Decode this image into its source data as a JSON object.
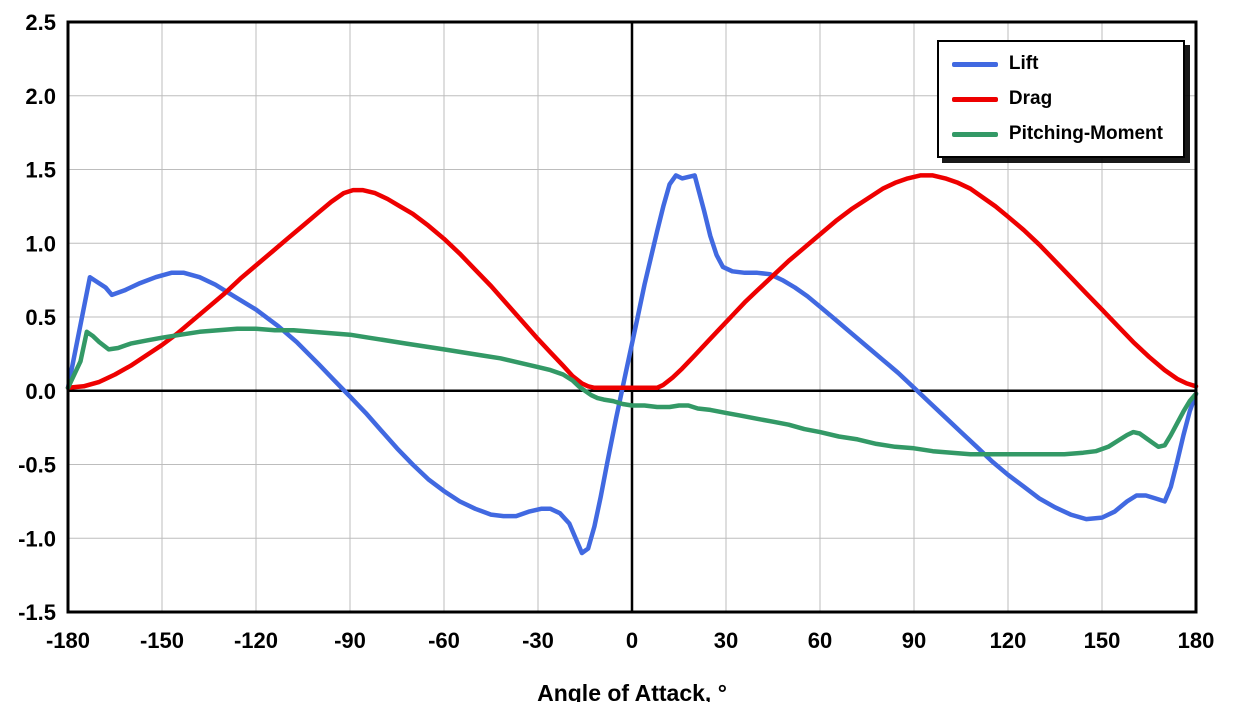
{
  "chart_data": {
    "type": "line",
    "title": "",
    "xlabel": "Angle of Attack, °",
    "ylabel": "",
    "xlim": [
      -180,
      180
    ],
    "ylim": [
      -1.5,
      2.5
    ],
    "xticks": [
      -180,
      -150,
      -120,
      -90,
      -60,
      -30,
      0,
      30,
      60,
      90,
      120,
      150,
      180
    ],
    "yticks": [
      2.5,
      2.0,
      1.5,
      1.0,
      0.5,
      0.0,
      -0.5,
      -1.0,
      -1.5
    ],
    "grid": true,
    "gridline_color": "#bdbdbd",
    "zero_line_color": "#000000",
    "legend_position": "top-right",
    "series": [
      {
        "name": "Lift",
        "color": "#4169E1",
        "points": [
          [
            -180,
            0.02
          ],
          [
            -173,
            0.77
          ],
          [
            -168,
            0.7
          ],
          [
            -166,
            0.65
          ],
          [
            -162,
            0.68
          ],
          [
            -157,
            0.73
          ],
          [
            -152,
            0.77
          ],
          [
            -147,
            0.8
          ],
          [
            -143,
            0.8
          ],
          [
            -138,
            0.77
          ],
          [
            -133,
            0.72
          ],
          [
            -127,
            0.64
          ],
          [
            -120,
            0.55
          ],
          [
            -113,
            0.44
          ],
          [
            -107,
            0.33
          ],
          [
            -100,
            0.18
          ],
          [
            -95,
            0.07
          ],
          [
            -90,
            -0.04
          ],
          [
            -85,
            -0.15
          ],
          [
            -80,
            -0.27
          ],
          [
            -75,
            -0.39
          ],
          [
            -70,
            -0.5
          ],
          [
            -65,
            -0.6
          ],
          [
            -60,
            -0.68
          ],
          [
            -55,
            -0.75
          ],
          [
            -50,
            -0.8
          ],
          [
            -45,
            -0.84
          ],
          [
            -41,
            -0.85
          ],
          [
            -37,
            -0.85
          ],
          [
            -33,
            -0.82
          ],
          [
            -29,
            -0.8
          ],
          [
            -26,
            -0.8
          ],
          [
            -23,
            -0.83
          ],
          [
            -20,
            -0.9
          ],
          [
            -18,
            -1.0
          ],
          [
            -16,
            -1.1
          ],
          [
            -14,
            -1.07
          ],
          [
            -12,
            -0.92
          ],
          [
            -10,
            -0.72
          ],
          [
            -8,
            -0.5
          ],
          [
            -5,
            -0.18
          ],
          [
            -2,
            0.12
          ],
          [
            0,
            0.32
          ],
          [
            2,
            0.52
          ],
          [
            4,
            0.72
          ],
          [
            6,
            0.9
          ],
          [
            8,
            1.08
          ],
          [
            10,
            1.25
          ],
          [
            12,
            1.4
          ],
          [
            14,
            1.46
          ],
          [
            16,
            1.44
          ],
          [
            18,
            1.45
          ],
          [
            20,
            1.46
          ],
          [
            21,
            1.38
          ],
          [
            23,
            1.22
          ],
          [
            25,
            1.05
          ],
          [
            27,
            0.92
          ],
          [
            29,
            0.84
          ],
          [
            32,
            0.81
          ],
          [
            36,
            0.8
          ],
          [
            40,
            0.8
          ],
          [
            44,
            0.79
          ],
          [
            48,
            0.75
          ],
          [
            52,
            0.7
          ],
          [
            56,
            0.64
          ],
          [
            60,
            0.57
          ],
          [
            65,
            0.48
          ],
          [
            70,
            0.39
          ],
          [
            75,
            0.3
          ],
          [
            80,
            0.21
          ],
          [
            85,
            0.12
          ],
          [
            90,
            0.02
          ],
          [
            95,
            -0.08
          ],
          [
            100,
            -0.18
          ],
          [
            105,
            -0.28
          ],
          [
            110,
            -0.38
          ],
          [
            115,
            -0.48
          ],
          [
            120,
            -0.57
          ],
          [
            125,
            -0.65
          ],
          [
            130,
            -0.73
          ],
          [
            135,
            -0.79
          ],
          [
            140,
            -0.84
          ],
          [
            145,
            -0.87
          ],
          [
            150,
            -0.86
          ],
          [
            154,
            -0.82
          ],
          [
            158,
            -0.75
          ],
          [
            161,
            -0.71
          ],
          [
            164,
            -0.71
          ],
          [
            167,
            -0.73
          ],
          [
            170,
            -0.75
          ],
          [
            172,
            -0.65
          ],
          [
            174,
            -0.48
          ],
          [
            176,
            -0.3
          ],
          [
            178,
            -0.14
          ],
          [
            180,
            -0.02
          ]
        ]
      },
      {
        "name": "Drag",
        "color": "#EE0000",
        "points": [
          [
            -180,
            0.02
          ],
          [
            -175,
            0.03
          ],
          [
            -170,
            0.06
          ],
          [
            -165,
            0.11
          ],
          [
            -160,
            0.17
          ],
          [
            -155,
            0.24
          ],
          [
            -150,
            0.31
          ],
          [
            -145,
            0.39
          ],
          [
            -140,
            0.48
          ],
          [
            -135,
            0.57
          ],
          [
            -130,
            0.66
          ],
          [
            -125,
            0.76
          ],
          [
            -120,
            0.85
          ],
          [
            -115,
            0.94
          ],
          [
            -110,
            1.03
          ],
          [
            -105,
            1.12
          ],
          [
            -100,
            1.21
          ],
          [
            -96,
            1.28
          ],
          [
            -92,
            1.34
          ],
          [
            -89,
            1.36
          ],
          [
            -86,
            1.36
          ],
          [
            -82,
            1.34
          ],
          [
            -78,
            1.3
          ],
          [
            -74,
            1.25
          ],
          [
            -70,
            1.2
          ],
          [
            -65,
            1.12
          ],
          [
            -60,
            1.03
          ],
          [
            -55,
            0.93
          ],
          [
            -50,
            0.82
          ],
          [
            -45,
            0.71
          ],
          [
            -40,
            0.59
          ],
          [
            -35,
            0.47
          ],
          [
            -30,
            0.35
          ],
          [
            -26,
            0.26
          ],
          [
            -22,
            0.17
          ],
          [
            -19,
            0.1
          ],
          [
            -16,
            0.05
          ],
          [
            -14,
            0.03
          ],
          [
            -12,
            0.02
          ],
          [
            -8,
            0.02
          ],
          [
            -4,
            0.02
          ],
          [
            0,
            0.02
          ],
          [
            4,
            0.02
          ],
          [
            8,
            0.02
          ],
          [
            10,
            0.04
          ],
          [
            13,
            0.09
          ],
          [
            16,
            0.15
          ],
          [
            20,
            0.24
          ],
          [
            24,
            0.33
          ],
          [
            28,
            0.42
          ],
          [
            32,
            0.51
          ],
          [
            36,
            0.6
          ],
          [
            40,
            0.68
          ],
          [
            45,
            0.78
          ],
          [
            50,
            0.88
          ],
          [
            55,
            0.97
          ],
          [
            60,
            1.06
          ],
          [
            65,
            1.15
          ],
          [
            70,
            1.23
          ],
          [
            75,
            1.3
          ],
          [
            80,
            1.37
          ],
          [
            84,
            1.41
          ],
          [
            88,
            1.44
          ],
          [
            92,
            1.46
          ],
          [
            96,
            1.46
          ],
          [
            100,
            1.44
          ],
          [
            104,
            1.41
          ],
          [
            108,
            1.37
          ],
          [
            112,
            1.31
          ],
          [
            116,
            1.25
          ],
          [
            120,
            1.18
          ],
          [
            125,
            1.09
          ],
          [
            130,
            0.99
          ],
          [
            135,
            0.88
          ],
          [
            140,
            0.77
          ],
          [
            145,
            0.66
          ],
          [
            150,
            0.55
          ],
          [
            155,
            0.44
          ],
          [
            160,
            0.33
          ],
          [
            165,
            0.23
          ],
          [
            170,
            0.14
          ],
          [
            174,
            0.08
          ],
          [
            177,
            0.05
          ],
          [
            180,
            0.03
          ]
        ]
      },
      {
        "name": "Pitching-Moment",
        "color": "#339966",
        "points": [
          [
            -180,
            0.02
          ],
          [
            -176,
            0.2
          ],
          [
            -174,
            0.4
          ],
          [
            -172,
            0.37
          ],
          [
            -170,
            0.33
          ],
          [
            -167,
            0.28
          ],
          [
            -164,
            0.29
          ],
          [
            -160,
            0.32
          ],
          [
            -155,
            0.34
          ],
          [
            -150,
            0.36
          ],
          [
            -144,
            0.38
          ],
          [
            -138,
            0.4
          ],
          [
            -132,
            0.41
          ],
          [
            -126,
            0.42
          ],
          [
            -120,
            0.42
          ],
          [
            -114,
            0.41
          ],
          [
            -108,
            0.41
          ],
          [
            -102,
            0.4
          ],
          [
            -96,
            0.39
          ],
          [
            -90,
            0.38
          ],
          [
            -84,
            0.36
          ],
          [
            -78,
            0.34
          ],
          [
            -72,
            0.32
          ],
          [
            -66,
            0.3
          ],
          [
            -60,
            0.28
          ],
          [
            -54,
            0.26
          ],
          [
            -48,
            0.24
          ],
          [
            -42,
            0.22
          ],
          [
            -36,
            0.19
          ],
          [
            -30,
            0.16
          ],
          [
            -26,
            0.14
          ],
          [
            -22,
            0.11
          ],
          [
            -19,
            0.07
          ],
          [
            -17,
            0.03
          ],
          [
            -15,
            0.0
          ],
          [
            -13,
            -0.03
          ],
          [
            -11,
            -0.05
          ],
          [
            -9,
            -0.06
          ],
          [
            -6,
            -0.07
          ],
          [
            -3,
            -0.09
          ],
          [
            0,
            -0.1
          ],
          [
            4,
            -0.1
          ],
          [
            8,
            -0.11
          ],
          [
            12,
            -0.11
          ],
          [
            15,
            -0.1
          ],
          [
            18,
            -0.1
          ],
          [
            21,
            -0.12
          ],
          [
            25,
            -0.13
          ],
          [
            30,
            -0.15
          ],
          [
            35,
            -0.17
          ],
          [
            40,
            -0.19
          ],
          [
            45,
            -0.21
          ],
          [
            50,
            -0.23
          ],
          [
            55,
            -0.26
          ],
          [
            60,
            -0.28
          ],
          [
            66,
            -0.31
          ],
          [
            72,
            -0.33
          ],
          [
            78,
            -0.36
          ],
          [
            84,
            -0.38
          ],
          [
            90,
            -0.39
          ],
          [
            96,
            -0.41
          ],
          [
            102,
            -0.42
          ],
          [
            108,
            -0.43
          ],
          [
            114,
            -0.43
          ],
          [
            120,
            -0.43
          ],
          [
            126,
            -0.43
          ],
          [
            132,
            -0.43
          ],
          [
            138,
            -0.43
          ],
          [
            144,
            -0.42
          ],
          [
            148,
            -0.41
          ],
          [
            152,
            -0.38
          ],
          [
            155,
            -0.34
          ],
          [
            158,
            -0.3
          ],
          [
            160,
            -0.28
          ],
          [
            162,
            -0.29
          ],
          [
            164,
            -0.32
          ],
          [
            166,
            -0.35
          ],
          [
            168,
            -0.38
          ],
          [
            170,
            -0.37
          ],
          [
            172,
            -0.3
          ],
          [
            174,
            -0.22
          ],
          [
            176,
            -0.14
          ],
          [
            178,
            -0.07
          ],
          [
            180,
            -0.02
          ]
        ]
      }
    ]
  }
}
